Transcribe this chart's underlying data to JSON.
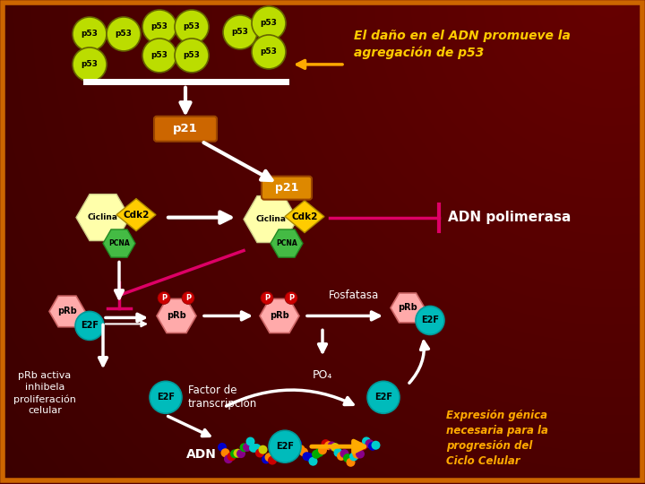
{
  "bg_color": "#5a0000",
  "border_color": "#cc6600",
  "title_text": "El daño en el ADN promueve la\nagregación de p53",
  "title_color": "#ffcc00",
  "adn_pol_text": "ADN polimerasa",
  "p53_color": "#bbdd00",
  "p53_outline": "#666600",
  "p53_text_color": "black",
  "p21_color": "#cc6600",
  "p21_light_color": "#dd8800",
  "p21_text_color": "white",
  "ciclina_color": "#ffffaa",
  "ciclina_text_color": "black",
  "cdk2_color": "#ffcc00",
  "cdk2_text_color": "black",
  "pcna_color": "#44bb44",
  "pcna_text_color": "black",
  "prb_color": "#ffaaaa",
  "prb_text_color": "black",
  "e2f_color": "#00bbbb",
  "e2f_text_color": "black",
  "phospho_color": "#cc0000",
  "inhibit_color": "#dd0066",
  "fosfatasa_text": "Fosfatasa",
  "po4_text": "PO₄",
  "factor_text": "Factor de\ntranscripción",
  "adn_text": "ADN",
  "prb_activa_text": "pRb activa\ninhibela\nproliferación\ncelular",
  "expresion_text": "Expresión génica\nnecesaria para la\nprogresión del\nCiclo Celular",
  "expresion_color": "#ffaa00"
}
